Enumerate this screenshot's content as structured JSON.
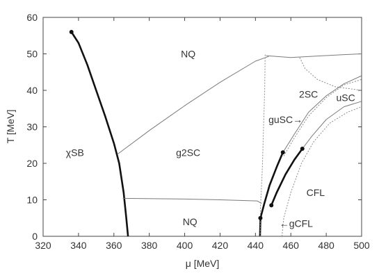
{
  "chart_data": {
    "type": "line",
    "xlabel": "μ [MeV]",
    "ylabel": "T [MeV]",
    "xlim": [
      320,
      500
    ],
    "ylim": [
      0,
      60
    ],
    "xticks": [
      320,
      340,
      360,
      380,
      400,
      420,
      440,
      460,
      480,
      500
    ],
    "yticks": [
      0,
      10,
      20,
      30,
      40,
      50,
      60
    ],
    "grid": false,
    "region_labels": [
      {
        "text": "NQ",
        "x": 402,
        "y": 50
      },
      {
        "text": "χSB",
        "x": 338,
        "y": 23
      },
      {
        "text": "g2SC",
        "x": 402,
        "y": 23
      },
      {
        "text": "NQ",
        "x": 403,
        "y": 4
      },
      {
        "text": "2SC",
        "x": 470,
        "y": 39
      },
      {
        "text": "uSC",
        "x": 491,
        "y": 38
      },
      {
        "text": "guSC→",
        "x": 457,
        "y": 32
      },
      {
        "text": "CFL",
        "x": 474,
        "y": 12
      },
      {
        "text": "←gCFL",
        "x": 463,
        "y": 3.5
      }
    ],
    "series": [
      {
        "style": "thick",
        "points": [
          [
            336,
            56
          ],
          [
            340,
            53
          ],
          [
            345,
            47
          ],
          [
            350,
            40
          ],
          [
            355,
            33
          ],
          [
            360,
            25.5
          ],
          [
            363,
            20
          ],
          [
            365.5,
            12
          ],
          [
            367,
            5
          ],
          [
            368,
            0
          ]
        ]
      },
      {
        "style": "thick",
        "points": [
          [
            442.6,
            0
          ],
          [
            442.8,
            5
          ],
          [
            445,
            9
          ],
          [
            448,
            14
          ],
          [
            452,
            19
          ],
          [
            455.5,
            23
          ]
        ]
      },
      {
        "style": "thick",
        "points": [
          [
            449,
            8.5
          ],
          [
            452,
            12
          ],
          [
            457,
            17
          ],
          [
            462,
            21
          ],
          [
            466.5,
            24
          ]
        ]
      },
      {
        "style": "thin",
        "points": [
          [
            362,
            22.5
          ],
          [
            380,
            29
          ],
          [
            400,
            35.8
          ],
          [
            420,
            42.2
          ],
          [
            440,
            48
          ],
          [
            447.5,
            49.3
          ]
        ]
      },
      {
        "style": "thin",
        "points": [
          [
            446,
            49.5
          ],
          [
            460,
            49
          ],
          [
            475,
            49.4
          ],
          [
            490,
            49.8
          ],
          [
            500,
            50
          ]
        ]
      },
      {
        "style": "thin",
        "points": [
          [
            365,
            10.4
          ],
          [
            400,
            10.2
          ],
          [
            420,
            10
          ],
          [
            441,
            9.7
          ],
          [
            443.5,
            9
          ]
        ]
      },
      {
        "style": "thin",
        "points": [
          [
            455.5,
            23
          ],
          [
            462,
            28
          ],
          [
            470,
            34
          ],
          [
            480,
            38.5
          ],
          [
            490,
            41.8
          ],
          [
            500,
            44
          ]
        ]
      },
      {
        "style": "thin",
        "points": [
          [
            466.5,
            24
          ],
          [
            472,
            27.5
          ],
          [
            480,
            32
          ],
          [
            490,
            35.5
          ],
          [
            500,
            37
          ]
        ]
      },
      {
        "style": "dotted",
        "points": [
          [
            445.5,
            49.8
          ],
          [
            445.2,
            40
          ],
          [
            444.6,
            30
          ],
          [
            444,
            20
          ],
          [
            443.3,
            12
          ],
          [
            442.8,
            8
          ],
          [
            442.7,
            0
          ]
        ]
      },
      {
        "style": "dotted",
        "points": [
          [
            465,
            49
          ],
          [
            468,
            46
          ],
          [
            475,
            43
          ],
          [
            485,
            41
          ],
          [
            500,
            40
          ]
        ]
      },
      {
        "style": "dotted",
        "points": [
          [
            456,
            22
          ],
          [
            462,
            27
          ],
          [
            470,
            33
          ],
          [
            480,
            38
          ],
          [
            490,
            41.5
          ],
          [
            500,
            43
          ]
        ]
      },
      {
        "style": "dotted",
        "points": [
          [
            455,
            0
          ],
          [
            456,
            5
          ],
          [
            460,
            12
          ],
          [
            466,
            20
          ],
          [
            473,
            26
          ],
          [
            482,
            31
          ],
          [
            492,
            34
          ],
          [
            500,
            35.5
          ]
        ]
      }
    ],
    "points": [
      {
        "x": 336,
        "y": 56
      },
      {
        "x": 455.5,
        "y": 23
      },
      {
        "x": 466.5,
        "y": 24
      },
      {
        "x": 449,
        "y": 8.5
      },
      {
        "x": 442.8,
        "y": 5
      }
    ]
  }
}
